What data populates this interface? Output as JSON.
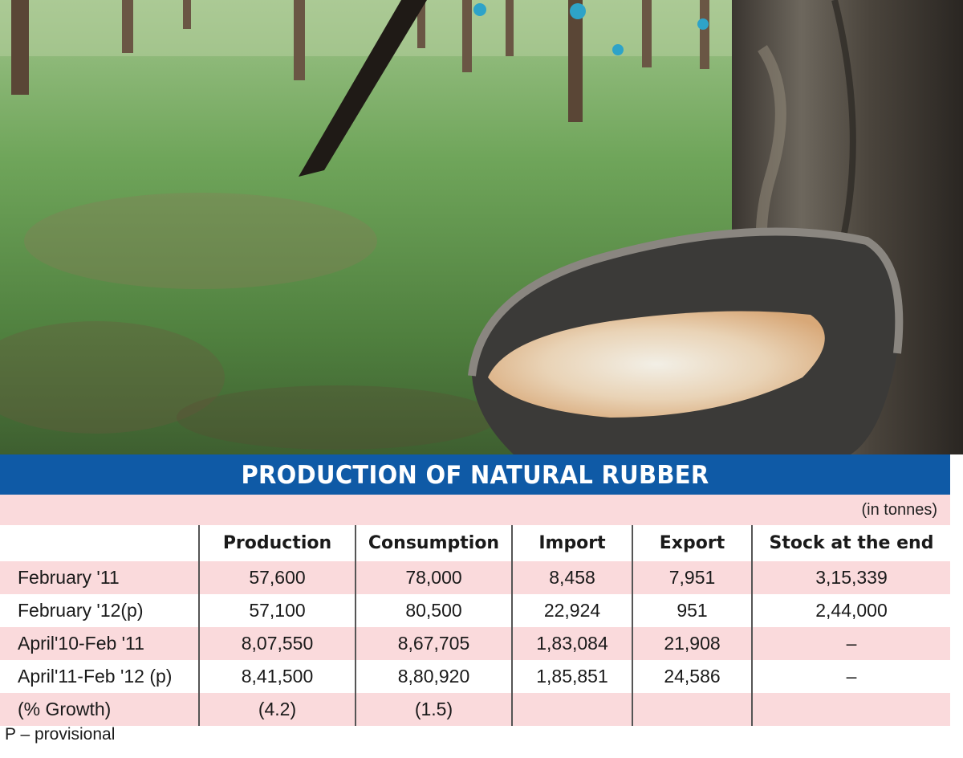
{
  "photo": {
    "subject": "rubber-tree-latex-cup-photo"
  },
  "banner": {
    "title": "PRODUCTION OF NATURAL RUBBER"
  },
  "units_note": "(in tonnes)",
  "table": {
    "headers": [
      "",
      "Production",
      "Consumption",
      "Import",
      "Export",
      "Stock at the end"
    ],
    "rows": [
      [
        "February '11",
        "57,600",
        "78,000",
        "8,458",
        "7,951",
        "3,15,339"
      ],
      [
        "February '12(p)",
        "57,100",
        "80,500",
        "22,924",
        "951",
        "2,44,000"
      ],
      [
        "April'10-Feb '11",
        "8,07,550",
        "8,67,705",
        "1,83,084",
        "21,908",
        "–"
      ],
      [
        "April'11-Feb '12 (p)",
        "8,41,500",
        "8,80,920",
        "1,85,851",
        "24,586",
        "–"
      ],
      [
        "(% Growth)",
        "(4.2)",
        "(1.5)",
        "",
        "",
        ""
      ]
    ]
  },
  "footnote": "P – provisional",
  "colors": {
    "banner_blue": "#0f5aa6",
    "row_pink": "#fadadc"
  }
}
